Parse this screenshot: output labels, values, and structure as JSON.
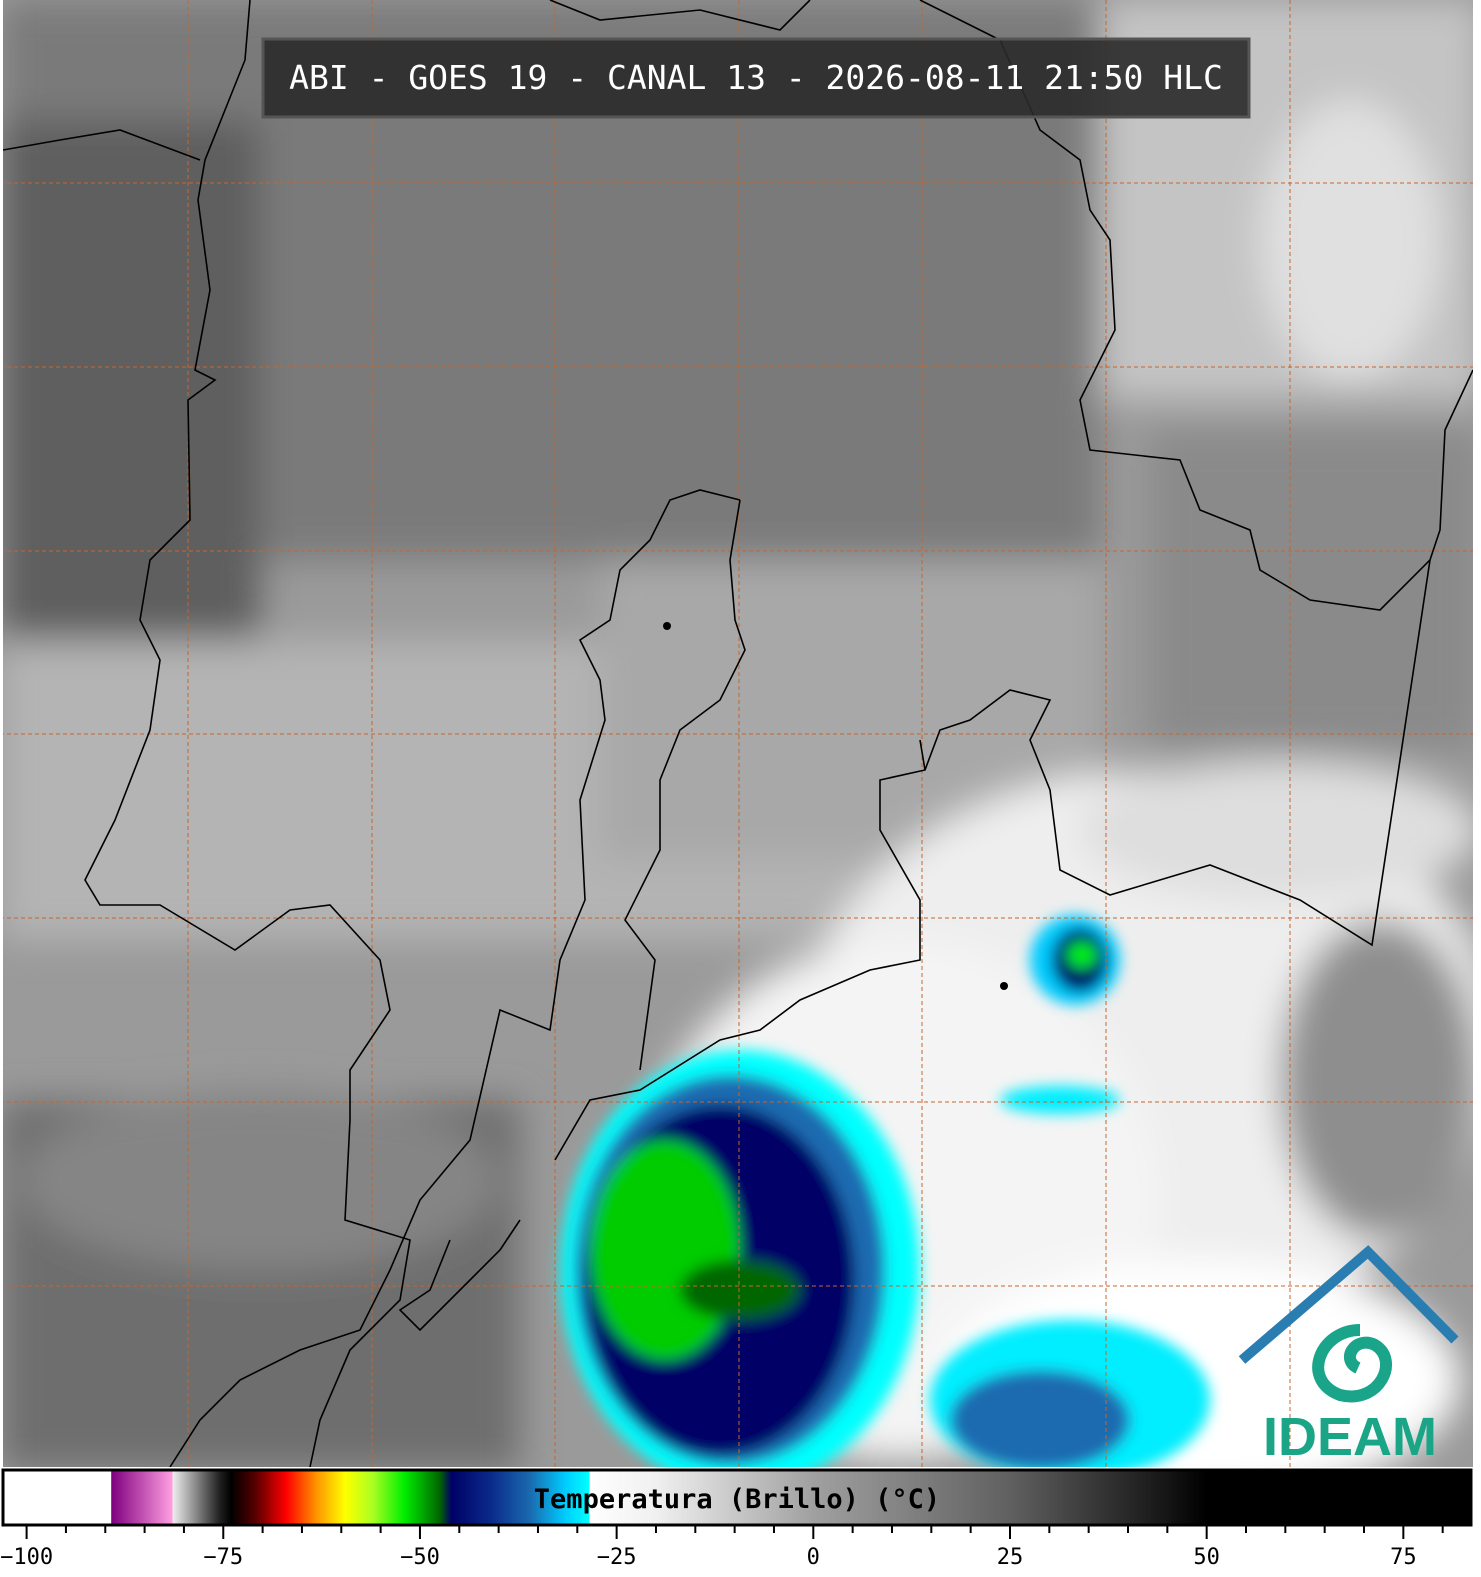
{
  "header": {
    "title": "ABI - GOES 19 - CANAL 13 - 2026-08-11 21:50 HLC"
  },
  "logo": {
    "text": "IDEAM"
  },
  "chart_data": {
    "type": "colorbar",
    "xlabel": "Temperatura (Brillo) (°C)",
    "xlim": [
      -103,
      83.6
    ],
    "xticks": [
      {
        "value": -100,
        "label": "−100"
      },
      {
        "value": -75,
        "label": "−75"
      },
      {
        "value": -50,
        "label": "−50"
      },
      {
        "value": -25,
        "label": "−25"
      },
      0,
      25,
      50,
      75
    ],
    "minor_ticks": [
      -95,
      -90,
      -85,
      -80,
      -70,
      -65,
      -60,
      -55,
      -45,
      -40,
      -35,
      -30,
      -20,
      -15,
      -10,
      -5,
      5,
      10,
      15,
      20,
      30,
      35,
      40,
      45,
      55,
      60,
      65,
      70,
      80
    ],
    "color_stops": [
      {
        "value": -103,
        "color": "#ffffff"
      },
      {
        "value": -89.3,
        "color": "#ffffff"
      },
      {
        "value": -89.2,
        "color": "#800080"
      },
      {
        "value": -81.5,
        "color": "#ff9ee0"
      },
      {
        "value": -81.4,
        "color": "#eeeeee"
      },
      {
        "value": -75.5,
        "color": "#222222"
      },
      {
        "value": -74,
        "color": "#000000"
      },
      {
        "value": -71,
        "color": "#550000"
      },
      {
        "value": -67,
        "color": "#ff0000"
      },
      {
        "value": -63,
        "color": "#ff9900"
      },
      {
        "value": -59.5,
        "color": "#ffff00"
      },
      {
        "value": -56,
        "color": "#aaff22"
      },
      {
        "value": -52,
        "color": "#00ee00"
      },
      {
        "value": -47.5,
        "color": "#006600"
      },
      {
        "value": -46,
        "color": "#000066"
      },
      {
        "value": -41,
        "color": "#0a2a8a"
      },
      {
        "value": -36,
        "color": "#1a6ab0"
      },
      {
        "value": -31.5,
        "color": "#00ccff"
      },
      {
        "value": -28.5,
        "color": "#00ffff"
      },
      {
        "value": -28.4,
        "color": "#ffffff"
      },
      {
        "value": -20,
        "color": "#f0f0f0"
      },
      {
        "value": 0,
        "color": "#a0a0a0"
      },
      {
        "value": 25,
        "color": "#606060"
      },
      {
        "value": 45,
        "color": "#151515"
      },
      {
        "value": 50,
        "color": "#000000"
      },
      {
        "value": 83.6,
        "color": "#000000"
      }
    ]
  }
}
